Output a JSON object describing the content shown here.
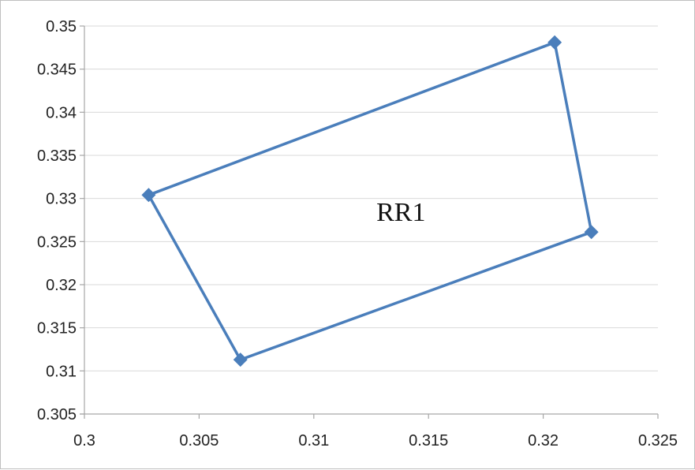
{
  "chart_data": {
    "type": "scatter",
    "title": "",
    "xlabel": "",
    "ylabel": "",
    "xlim": [
      0.3,
      0.325
    ],
    "ylim": [
      0.305,
      0.35
    ],
    "x_ticks": [
      "0.3",
      "0.305",
      "0.31",
      "0.315",
      "0.32",
      "0.325"
    ],
    "y_ticks": [
      "0.305",
      "0.31",
      "0.315",
      "0.32",
      "0.325",
      "0.33",
      "0.335",
      "0.34",
      "0.345",
      "0.35"
    ],
    "grid": "horizontal",
    "legend": "none",
    "series": [
      {
        "x": [
          0.3028,
          0.3205,
          0.3221,
          0.3068,
          0.3028
        ],
        "y": [
          0.3304,
          0.3481,
          0.3261,
          0.3113,
          0.3304
        ],
        "color": "#4a7ebb",
        "marker": "diamond",
        "connected": true
      }
    ],
    "annotations": [
      {
        "text": "RR1",
        "x": 0.3138,
        "y": 0.3274
      }
    ]
  }
}
